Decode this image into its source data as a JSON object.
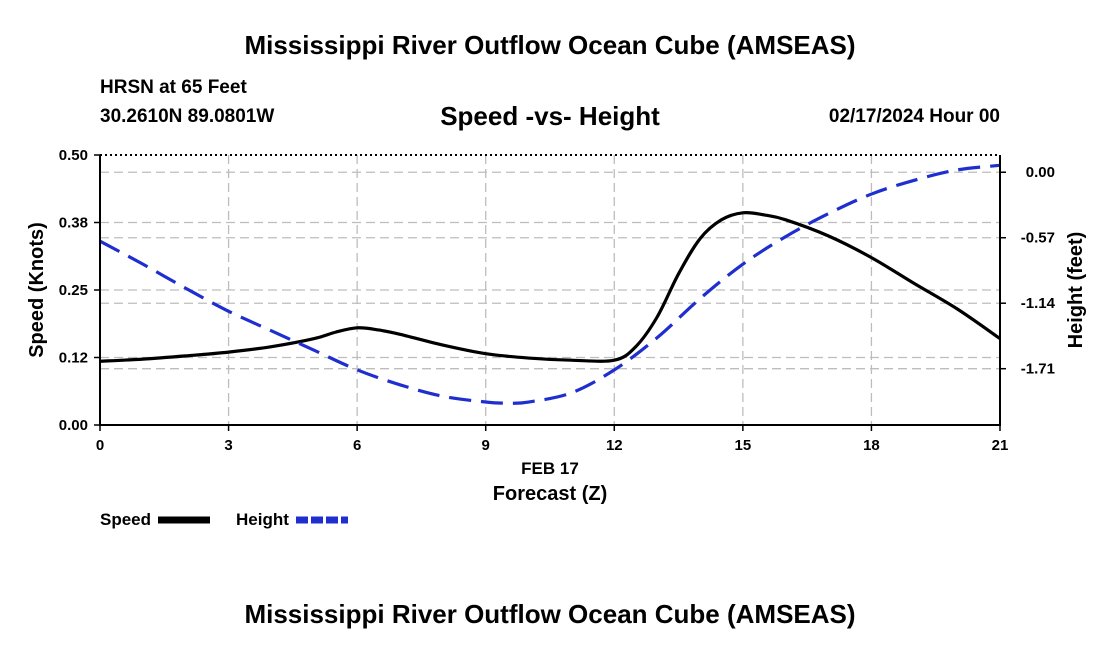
{
  "header": {
    "title": "Mississippi River Outflow Ocean Cube (AMSEAS)",
    "station": "HRSN at 65 Feet",
    "coords": "30.2610N  89.0801W",
    "subtitle": "Speed -vs- Height",
    "datetime": "02/17/2024 Hour 00"
  },
  "footer": {
    "title": "Mississippi River Outflow Ocean Cube (AMSEAS)"
  },
  "chart_data": {
    "type": "line",
    "title": "Speed -vs- Height",
    "xlabel": "Forecast (Z)",
    "xsublabel": "FEB 17",
    "ylabel": "Speed (Knots)",
    "y2label": "Height (feet)",
    "xlim": [
      0,
      21
    ],
    "ylim": [
      0,
      0.5
    ],
    "y2lim": [
      -2.2,
      0.15
    ],
    "grid": true,
    "legend_position": "bottom-left",
    "x_ticks": [
      "0",
      "3",
      "6",
      "9",
      "12",
      "15",
      "18",
      "21"
    ],
    "x_tick_values": [
      0,
      3,
      6,
      9,
      12,
      15,
      18,
      21
    ],
    "y_ticks": [
      "0.00",
      "0.12",
      "0.25",
      "0.38",
      "0.50"
    ],
    "y_tick_values": [
      0,
      0.125,
      0.25,
      0.375,
      0.5
    ],
    "y2_ticks": [
      "0.00",
      "-0.57",
      "-1.14",
      "-1.71"
    ],
    "y2_tick_values": [
      0,
      -0.57,
      -1.14,
      -1.71
    ],
    "series": [
      {
        "name": "Speed",
        "axis": "left",
        "color": "#000000",
        "dash": "solid",
        "x": [
          0,
          1,
          2,
          3,
          4,
          5,
          5.5,
          6,
          6.5,
          7,
          8,
          9,
          10,
          11,
          12,
          12.5,
          13,
          13.5,
          14,
          14.5,
          15,
          15.5,
          16,
          17,
          18,
          19,
          20,
          21
        ],
        "values": [
          0.118,
          0.122,
          0.128,
          0.135,
          0.145,
          0.16,
          0.172,
          0.18,
          0.176,
          0.168,
          0.148,
          0.132,
          0.124,
          0.12,
          0.12,
          0.145,
          0.2,
          0.28,
          0.345,
          0.38,
          0.393,
          0.389,
          0.38,
          0.35,
          0.31,
          0.262,
          0.215,
          0.16
        ]
      },
      {
        "name": "Height",
        "axis": "right",
        "color": "#1f2ecf",
        "dash": "dashed",
        "x": [
          0,
          1,
          2,
          3,
          4,
          5,
          6,
          7,
          8,
          9,
          9.5,
          10,
          11,
          12,
          13,
          14,
          15,
          16,
          17,
          18,
          19,
          20,
          21
        ],
        "values": [
          -0.6,
          -0.8,
          -1.01,
          -1.21,
          -1.38,
          -1.55,
          -1.72,
          -1.85,
          -1.95,
          -2.0,
          -2.01,
          -2.0,
          -1.92,
          -1.72,
          -1.44,
          -1.1,
          -0.8,
          -0.56,
          -0.36,
          -0.19,
          -0.07,
          0.02,
          0.06
        ]
      }
    ]
  }
}
